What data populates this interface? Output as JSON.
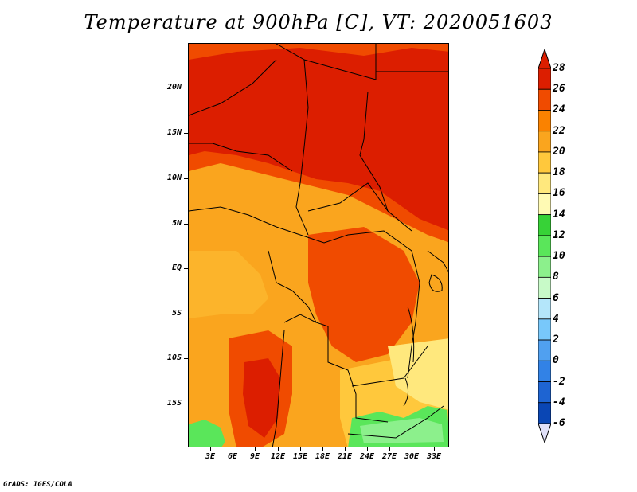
{
  "title": "Temperature at 900hPa [C], VT: 2020051603",
  "footer": "GrADS: IGES/COLA",
  "map": {
    "lat_labels": [
      "20N",
      "15N",
      "10N",
      "5N",
      "EQ",
      "5S",
      "10S",
      "15S"
    ],
    "lon_labels": [
      "3E",
      "6E",
      "9E",
      "12E",
      "15E",
      "18E",
      "21E",
      "24E",
      "27E",
      "30E",
      "33E"
    ]
  },
  "colorbar": {
    "labels": [
      "28",
      "26",
      "24",
      "22",
      "20",
      "18",
      "16",
      "14",
      "12",
      "10",
      "8",
      "6",
      "4",
      "2",
      "0",
      "-2",
      "-4",
      "-6"
    ],
    "colors": [
      "#a50000",
      "#dc1e00",
      "#f04b00",
      "#fa8200",
      "#faa51e",
      "#ffc83c",
      "#ffe87d",
      "#fffab4",
      "#37d237",
      "#5ae65a",
      "#8cf08c",
      "#c8fac8",
      "#b4e6fa",
      "#78c8fa",
      "#50a0f0",
      "#3282e6",
      "#1e64d2",
      "#0a46b4",
      "#082882",
      "#04004a"
    ],
    "top_arrow_color": "#dc1e00",
    "bottom_arrow_color": "#e0e0f8"
  }
}
